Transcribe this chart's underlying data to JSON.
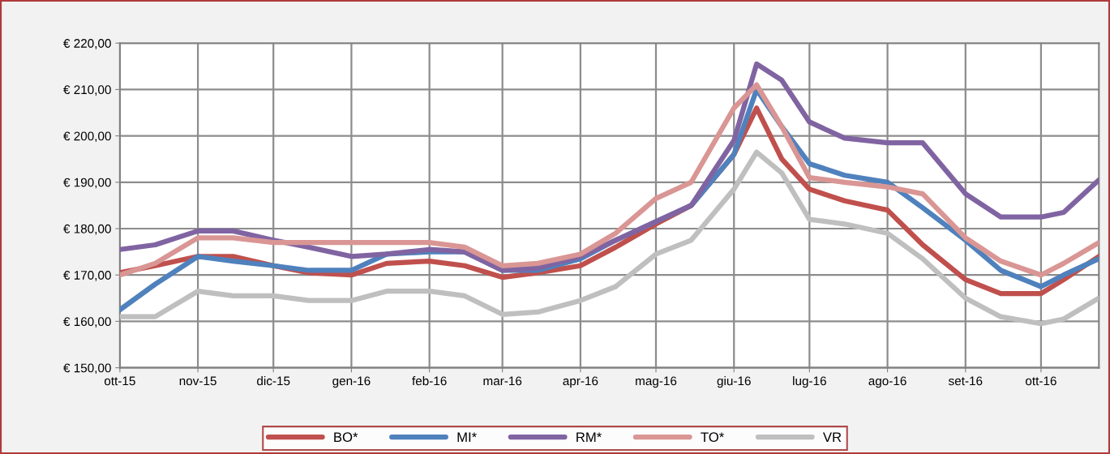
{
  "chart_data": {
    "type": "line",
    "x": [
      "2015-10-01",
      "2015-10-15",
      "2015-11-01",
      "2015-11-15",
      "2015-12-01",
      "2015-12-15",
      "2016-01-01",
      "2016-01-15",
      "2016-02-01",
      "2016-02-15",
      "2016-03-01",
      "2016-03-15",
      "2016-04-01",
      "2016-04-15",
      "2016-05-01",
      "2016-05-15",
      "2016-06-01",
      "2016-06-10",
      "2016-06-20",
      "2016-07-01",
      "2016-07-15",
      "2016-08-01",
      "2016-08-15",
      "2016-09-01",
      "2016-09-15",
      "2016-10-01",
      "2016-10-10",
      "2016-10-24"
    ],
    "series": [
      {
        "name": "BO*",
        "color": "#c0504d",
        "values": [
          170.5,
          172,
          174,
          174,
          172,
          170.5,
          170,
          172.5,
          173,
          172,
          169.5,
          170.5,
          172,
          176,
          181,
          185,
          196,
          206,
          195,
          188.5,
          186,
          184,
          176.5,
          169,
          166,
          166,
          169,
          174
        ]
      },
      {
        "name": "MI*",
        "color": "#4f81bd",
        "values": [
          162.5,
          168,
          174,
          173,
          172,
          171,
          171,
          174.5,
          175,
          175,
          171,
          171,
          173.5,
          177.5,
          181.5,
          185,
          196,
          210,
          202,
          194,
          191.5,
          190,
          184.5,
          177.5,
          171,
          167.5,
          170,
          173.5
        ]
      },
      {
        "name": "RM*",
        "color": "#8064a2",
        "values": [
          175.5,
          176.5,
          179.5,
          179.5,
          177.5,
          176,
          174,
          174.5,
          175.5,
          175,
          171,
          171.5,
          174,
          177.5,
          181.5,
          185,
          199,
          215.5,
          212,
          203,
          199.5,
          198.5,
          198.5,
          187.5,
          182.5,
          182.5,
          183.5,
          190.5
        ]
      },
      {
        "name": "TO*",
        "color": "#d99694",
        "values": [
          170,
          172.5,
          178,
          178,
          177,
          177,
          177,
          177,
          177,
          176,
          172,
          172.5,
          174.5,
          179,
          186.5,
          190,
          206,
          211,
          202,
          191,
          190,
          189,
          187.5,
          178,
          173,
          170,
          172.5,
          177
        ]
      },
      {
        "name": "VR",
        "color": "#bfbfbf",
        "values": [
          161,
          161,
          166.5,
          165.5,
          165.5,
          164.5,
          164.5,
          166.5,
          166.5,
          165.5,
          161.5,
          162,
          164.5,
          167.5,
          174.5,
          177.5,
          188.5,
          196.5,
          192,
          182,
          181,
          179,
          173.5,
          165,
          161,
          159.5,
          160.5,
          165
        ]
      }
    ],
    "xlim": [
      "2015-10-01",
      "2016-10-24"
    ],
    "xticks": [
      {
        "value": "2015-10-01",
        "label": "ott-15"
      },
      {
        "value": "2015-11-01",
        "label": "nov-15"
      },
      {
        "value": "2015-12-01",
        "label": "dic-15"
      },
      {
        "value": "2016-01-01",
        "label": "gen-16"
      },
      {
        "value": "2016-02-01",
        "label": "feb-16"
      },
      {
        "value": "2016-03-01",
        "label": "mar-16"
      },
      {
        "value": "2016-04-01",
        "label": "apr-16"
      },
      {
        "value": "2016-05-01",
        "label": "mag-16"
      },
      {
        "value": "2016-06-01",
        "label": "giu-16"
      },
      {
        "value": "2016-07-01",
        "label": "lug-16"
      },
      {
        "value": "2016-08-01",
        "label": "ago-16"
      },
      {
        "value": "2016-09-01",
        "label": "set-16"
      },
      {
        "value": "2016-10-01",
        "label": "ott-16"
      }
    ],
    "ylim": [
      150,
      220
    ],
    "yticks": [
      {
        "value": 150,
        "label": "€ 150,00"
      },
      {
        "value": 160,
        "label": "€ 160,00"
      },
      {
        "value": 170,
        "label": "€ 170,00"
      },
      {
        "value": 180,
        "label": "€ 180,00"
      },
      {
        "value": 190,
        "label": "€ 190,00"
      },
      {
        "value": 200,
        "label": "€ 200,00"
      },
      {
        "value": 210,
        "label": "€ 210,00"
      },
      {
        "value": 220,
        "label": "€ 220,00"
      }
    ],
    "grid": true,
    "legend": "bottom",
    "line_style": "solid"
  }
}
